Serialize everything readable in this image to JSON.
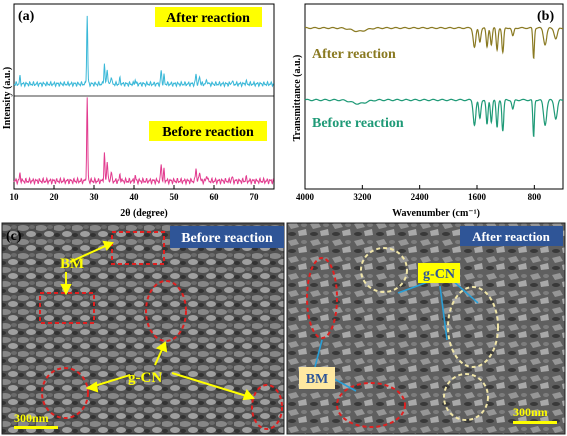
{
  "colors": {
    "xrd_after": "#3ab8d8",
    "xrd_before": "#e23b8f",
    "ftir_after": "#8a7a22",
    "ftir_before": "#1f9a77",
    "highlight": "#ffff00",
    "sem_banner": "#2f5597",
    "annotation_yellow": "#ffff00",
    "annotation_blue": "#2a9fd6",
    "ellipse_red": "#e02020",
    "ellipse_cream": "#f1e6a8",
    "label_box": "#ffe8a0"
  },
  "panels": {
    "a": {
      "label": "(a)"
    },
    "b": {
      "label": "(b)"
    },
    "c": {
      "label": "(c)"
    }
  },
  "chart_data": [
    {
      "id": "a",
      "type": "line",
      "xlabel": "2θ (degree)",
      "ylabel": "Intensity (a.u.)",
      "xlim": [
        10,
        75
      ],
      "xticks": [
        10,
        20,
        30,
        40,
        50,
        60,
        70
      ],
      "legend_labels": [
        "After reaction",
        "Before reaction"
      ],
      "series": [
        {
          "name": "After reaction",
          "peaks": [
            {
              "x": 11.5,
              "h": 0.1
            },
            {
              "x": 28.3,
              "h": 1.0
            },
            {
              "x": 32.6,
              "h": 0.3
            },
            {
              "x": 33.3,
              "h": 0.24
            },
            {
              "x": 34.3,
              "h": 0.12
            },
            {
              "x": 36.5,
              "h": 0.08
            },
            {
              "x": 40.3,
              "h": 0.06
            },
            {
              "x": 46.8,
              "h": 0.2
            },
            {
              "x": 47.5,
              "h": 0.12
            },
            {
              "x": 55.5,
              "h": 0.15
            },
            {
              "x": 56.4,
              "h": 0.12
            },
            {
              "x": 58.2,
              "h": 0.07
            },
            {
              "x": 64.5,
              "h": 0.05
            },
            {
              "x": 68.0,
              "h": 0.04
            }
          ]
        },
        {
          "name": "Before reaction",
          "peaks": [
            {
              "x": 11.5,
              "h": 0.09
            },
            {
              "x": 28.3,
              "h": 1.0
            },
            {
              "x": 32.6,
              "h": 0.33
            },
            {
              "x": 33.3,
              "h": 0.26
            },
            {
              "x": 34.3,
              "h": 0.12
            },
            {
              "x": 36.5,
              "h": 0.08
            },
            {
              "x": 40.3,
              "h": 0.06
            },
            {
              "x": 46.8,
              "h": 0.22
            },
            {
              "x": 47.5,
              "h": 0.13
            },
            {
              "x": 55.5,
              "h": 0.17
            },
            {
              "x": 56.4,
              "h": 0.13
            },
            {
              "x": 58.2,
              "h": 0.08
            },
            {
              "x": 64.5,
              "h": 0.05
            },
            {
              "x": 68.0,
              "h": 0.04
            }
          ]
        }
      ]
    },
    {
      "id": "b",
      "type": "line",
      "xlabel": "Wavenumber (cm⁻¹)",
      "ylabel": "Transmittance (a.u.)",
      "xlim": [
        4000,
        400
      ],
      "x_reversed": true,
      "xticks": [
        4000,
        3200,
        2400,
        1600,
        800
      ],
      "legend_labels": [
        "After reaction",
        "Before reaction"
      ],
      "series": [
        {
          "name": "After reaction",
          "bands": [
            {
              "x": 3250,
              "d": 0.06,
              "w": 140
            },
            {
              "x": 1635,
              "d": 0.35,
              "w": 25
            },
            {
              "x": 1560,
              "d": 0.25,
              "w": 20
            },
            {
              "x": 1460,
              "d": 0.35,
              "w": 18
            },
            {
              "x": 1400,
              "d": 0.3,
              "w": 18
            },
            {
              "x": 1320,
              "d": 0.4,
              "w": 18
            },
            {
              "x": 1240,
              "d": 0.45,
              "w": 18
            },
            {
              "x": 1100,
              "d": 0.15,
              "w": 20
            },
            {
              "x": 810,
              "d": 0.55,
              "w": 15
            },
            {
              "x": 650,
              "d": 0.3,
              "w": 30
            },
            {
              "x": 500,
              "d": 0.2,
              "w": 30
            }
          ]
        },
        {
          "name": "Before reaction",
          "bands": [
            {
              "x": 3250,
              "d": 0.06,
              "w": 140
            },
            {
              "x": 1635,
              "d": 0.4,
              "w": 25
            },
            {
              "x": 1560,
              "d": 0.3,
              "w": 20
            },
            {
              "x": 1460,
              "d": 0.4,
              "w": 18
            },
            {
              "x": 1400,
              "d": 0.35,
              "w": 18
            },
            {
              "x": 1320,
              "d": 0.45,
              "w": 18
            },
            {
              "x": 1240,
              "d": 0.5,
              "w": 18
            },
            {
              "x": 1100,
              "d": 0.15,
              "w": 20
            },
            {
              "x": 810,
              "d": 0.6,
              "w": 15
            },
            {
              "x": 650,
              "d": 0.4,
              "w": 30
            },
            {
              "x": 500,
              "d": 0.3,
              "w": 30
            }
          ]
        }
      ]
    }
  ],
  "sem": {
    "left": {
      "banner": "Before reaction",
      "labels": {
        "bm": "BM",
        "gcn": "g-CN"
      },
      "scalebar": "300nm"
    },
    "right": {
      "banner": "After reaction",
      "labels": {
        "bm": "BM",
        "gcn": "g-CN"
      },
      "scalebar": "300nm"
    }
  }
}
